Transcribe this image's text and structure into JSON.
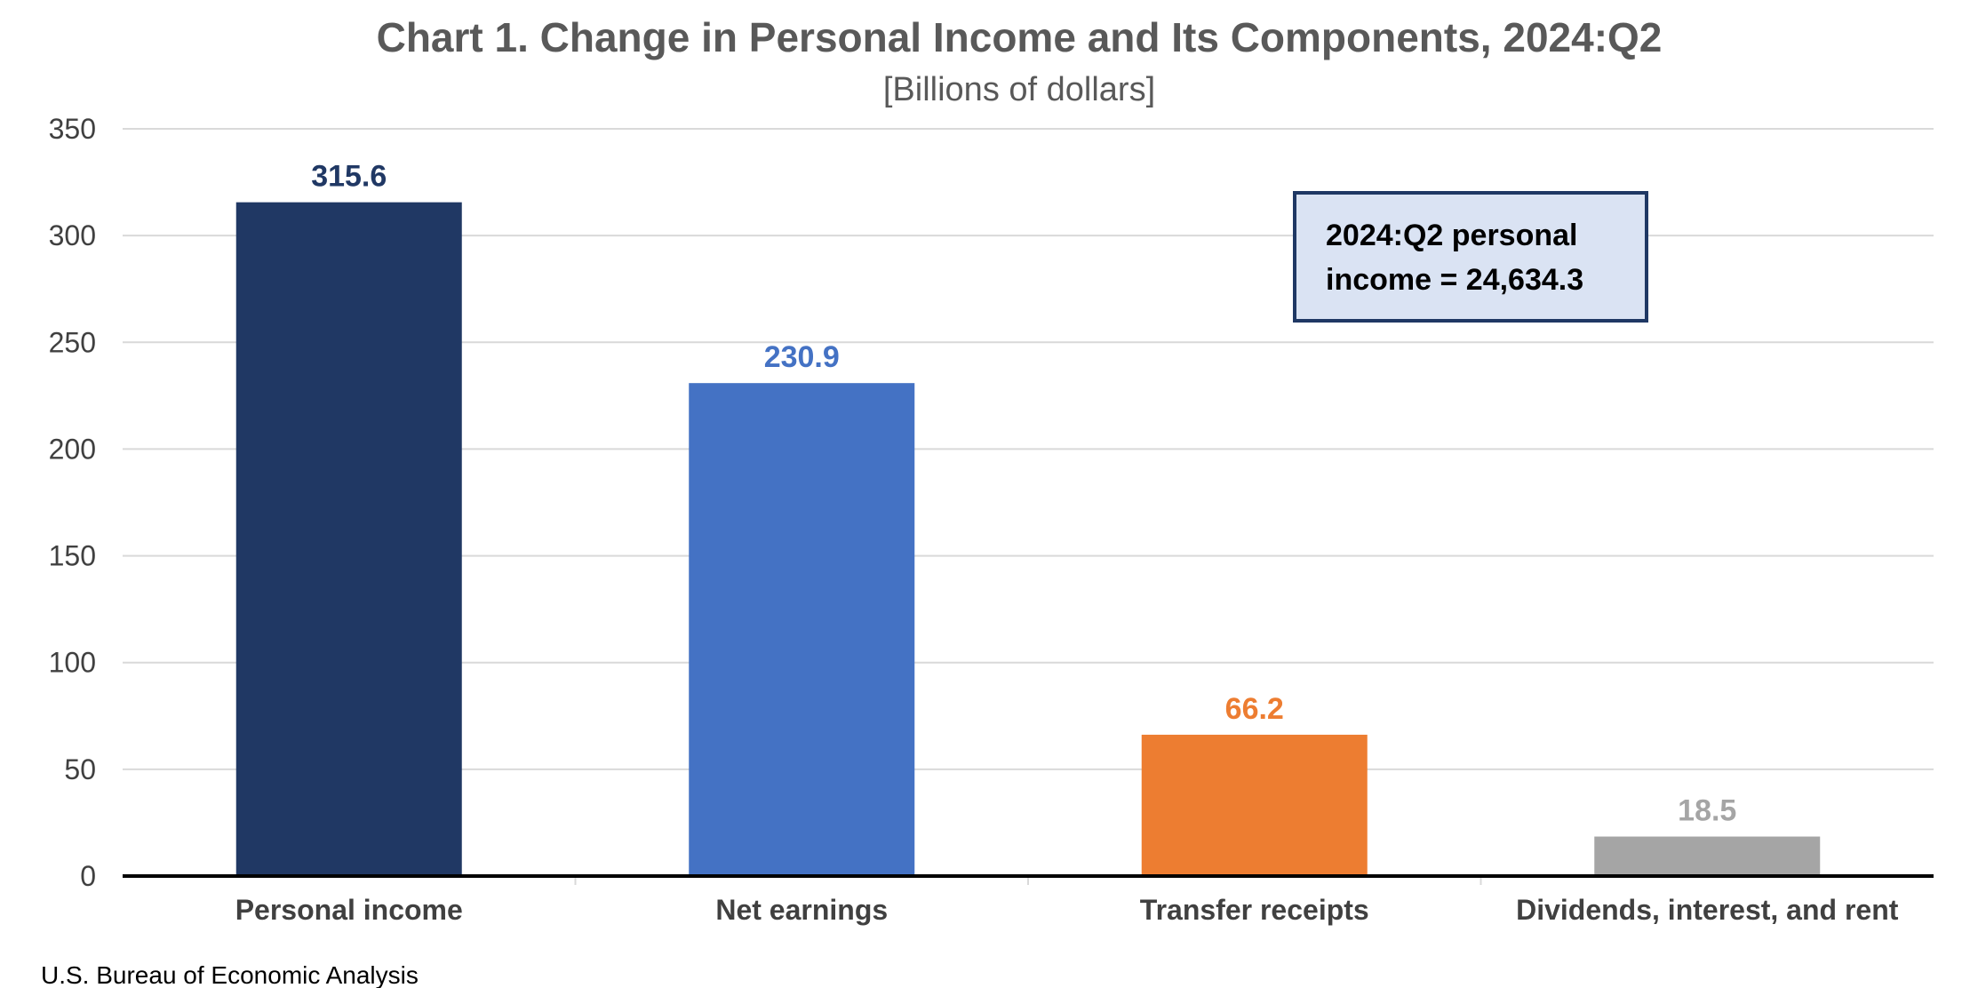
{
  "chart_data": {
    "type": "bar",
    "title": "Chart 1. Change in Personal Income and Its Components, 2024:Q2",
    "subtitle": "[Billions of dollars]",
    "xlabel": "",
    "ylabel": "",
    "ylim": [
      0,
      350
    ],
    "yticks": [
      0,
      50,
      100,
      150,
      200,
      250,
      300,
      350
    ],
    "grid": true,
    "categories": [
      "Personal income",
      "Net earnings",
      "Transfer receipts",
      "Dividends, interest, and rent"
    ],
    "values": [
      315.6,
      230.9,
      66.2,
      18.5
    ],
    "data_labels": [
      "315.6",
      "230.9",
      "66.2",
      "18.5"
    ],
    "colors": [
      "#203864",
      "#4472c4",
      "#ed7d31",
      "#a5a5a5"
    ],
    "annotation": {
      "lines": [
        "2024:Q2 personal",
        "income = 24,634.3"
      ],
      "placement": "top-right",
      "fill": "#dae3f3",
      "border": "#1f3864"
    },
    "source": "U.S. Bureau of Economic Analysis"
  }
}
